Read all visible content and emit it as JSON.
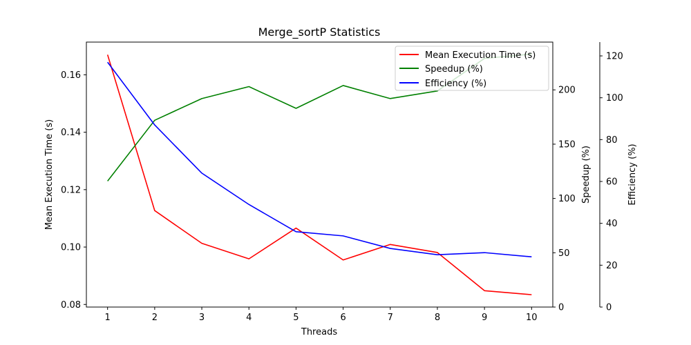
{
  "chart_data": {
    "type": "line",
    "title": "Merge_sortP Statistics",
    "xlabel": "Threads",
    "x": [
      1,
      2,
      3,
      4,
      5,
      6,
      7,
      8,
      9,
      10
    ],
    "xlim": [
      0.55,
      10.45
    ],
    "axes": {
      "left": {
        "label": "Mean Execution Time (s)",
        "ylim": [
          0.0791,
          0.1714
        ],
        "ticks": [
          0.08,
          0.1,
          0.12,
          0.14,
          0.16
        ],
        "tick_labels": [
          "0.08",
          "0.10",
          "0.12",
          "0.14",
          "0.16"
        ]
      },
      "right1": {
        "label": "Speedup (%)",
        "ylim": [
          0,
          244
        ],
        "ticks": [
          0,
          50,
          100,
          150,
          200
        ],
        "tick_labels": [
          "0",
          "50",
          "100",
          "150",
          "200"
        ]
      },
      "right2": {
        "label": "Efficiency (%)",
        "ylim": [
          0,
          126.6
        ],
        "ticks": [
          0,
          20,
          40,
          60,
          80,
          100,
          120
        ],
        "tick_labels": [
          "0",
          "20",
          "40",
          "60",
          "80",
          "100",
          "120"
        ]
      }
    },
    "series": [
      {
        "name": "Mean Execution Time (s)",
        "axis": "left",
        "color": "#ff0000",
        "values": [
          0.167,
          0.1127,
          0.1013,
          0.0959,
          0.1066,
          0.0955,
          0.1009,
          0.0981,
          0.0848,
          0.0834
        ]
      },
      {
        "name": "Speedup (%)",
        "axis": "right1",
        "color": "#008000",
        "values": [
          116,
          172,
          192,
          203,
          183,
          204,
          192,
          199,
          229,
          233
        ]
      },
      {
        "name": "Efficiency (%)",
        "axis": "right2",
        "color": "#0000ff",
        "values": [
          117,
          87,
          64,
          49,
          36,
          34,
          28,
          25,
          26,
          24
        ]
      }
    ],
    "legend_position": "top-right"
  }
}
